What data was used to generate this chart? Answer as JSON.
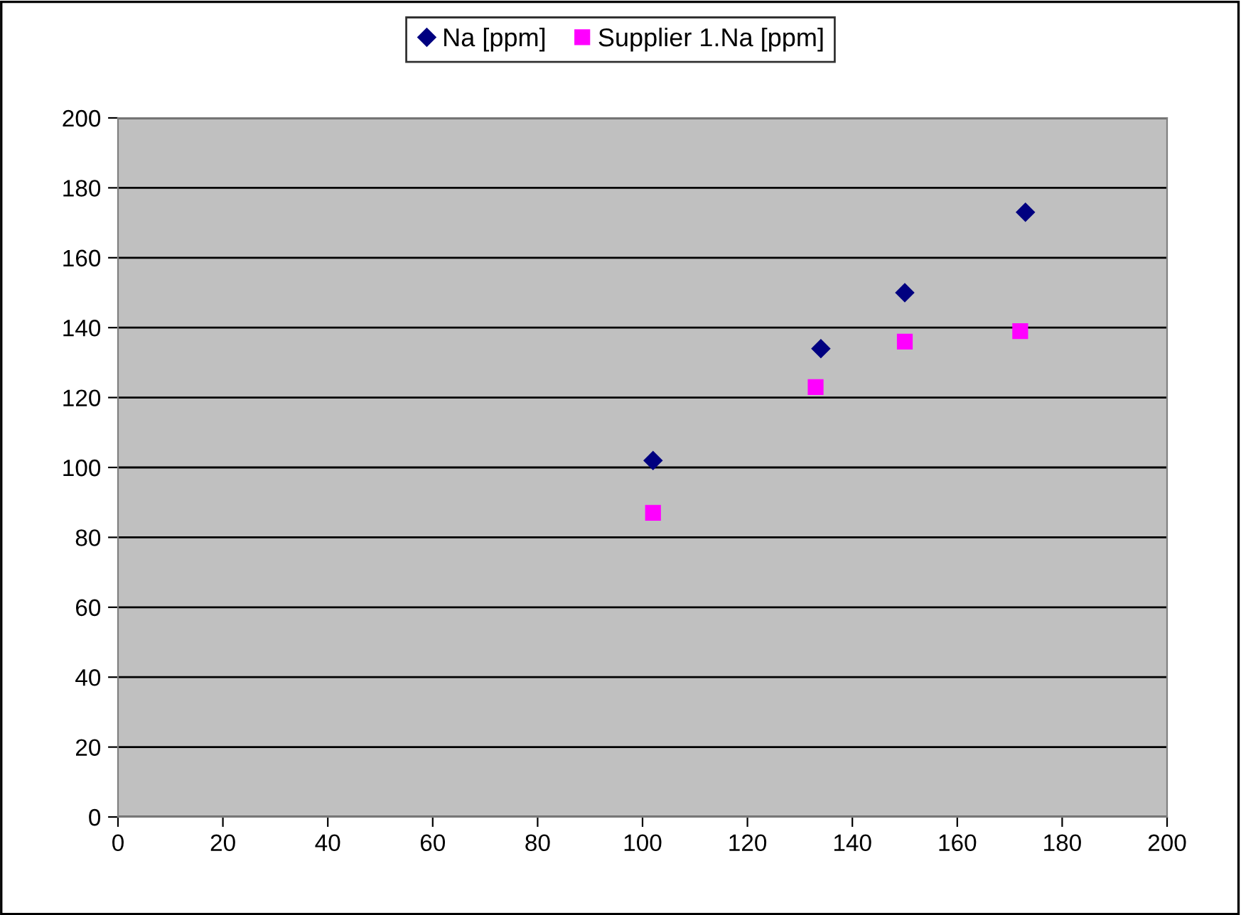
{
  "chart_data": {
    "type": "scatter",
    "series": [
      {
        "name": "Na [ppm]",
        "color": "#000080",
        "marker": "diamond",
        "x": [
          102,
          134,
          150,
          173
        ],
        "values": [
          102,
          134,
          150,
          173
        ]
      },
      {
        "name": "Supplier 1.Na [ppm]",
        "color": "#ff00ff",
        "marker": "square",
        "x": [
          102,
          133,
          150,
          172
        ],
        "values": [
          87,
          123,
          136,
          139
        ]
      }
    ],
    "xlim": [
      0,
      200
    ],
    "ylim": [
      0,
      200
    ],
    "xticks": [
      0,
      20,
      40,
      60,
      80,
      100,
      120,
      140,
      160,
      180,
      200
    ],
    "yticks": [
      0,
      20,
      40,
      60,
      80,
      100,
      120,
      140,
      160,
      180,
      200
    ],
    "grid": "y",
    "legend": "top"
  }
}
